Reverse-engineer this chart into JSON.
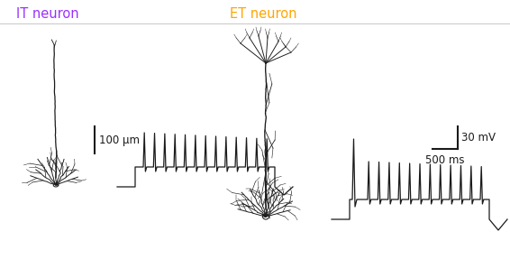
{
  "title_it": "IT neuron",
  "title_et": "ET neuron",
  "color_it": "#9B30FF",
  "color_et": "#FFA500",
  "color_sep": "#C8C8C8",
  "scale_bar_um_label": "100 μm",
  "scale_bar_ms_label": "500 ms",
  "scale_bar_mv_label": "30 mV",
  "bg_color": "#FFFFFF",
  "lc": "#1a1a1a",
  "fig_width": 5.66,
  "fig_height": 3.08,
  "dpi": 100
}
